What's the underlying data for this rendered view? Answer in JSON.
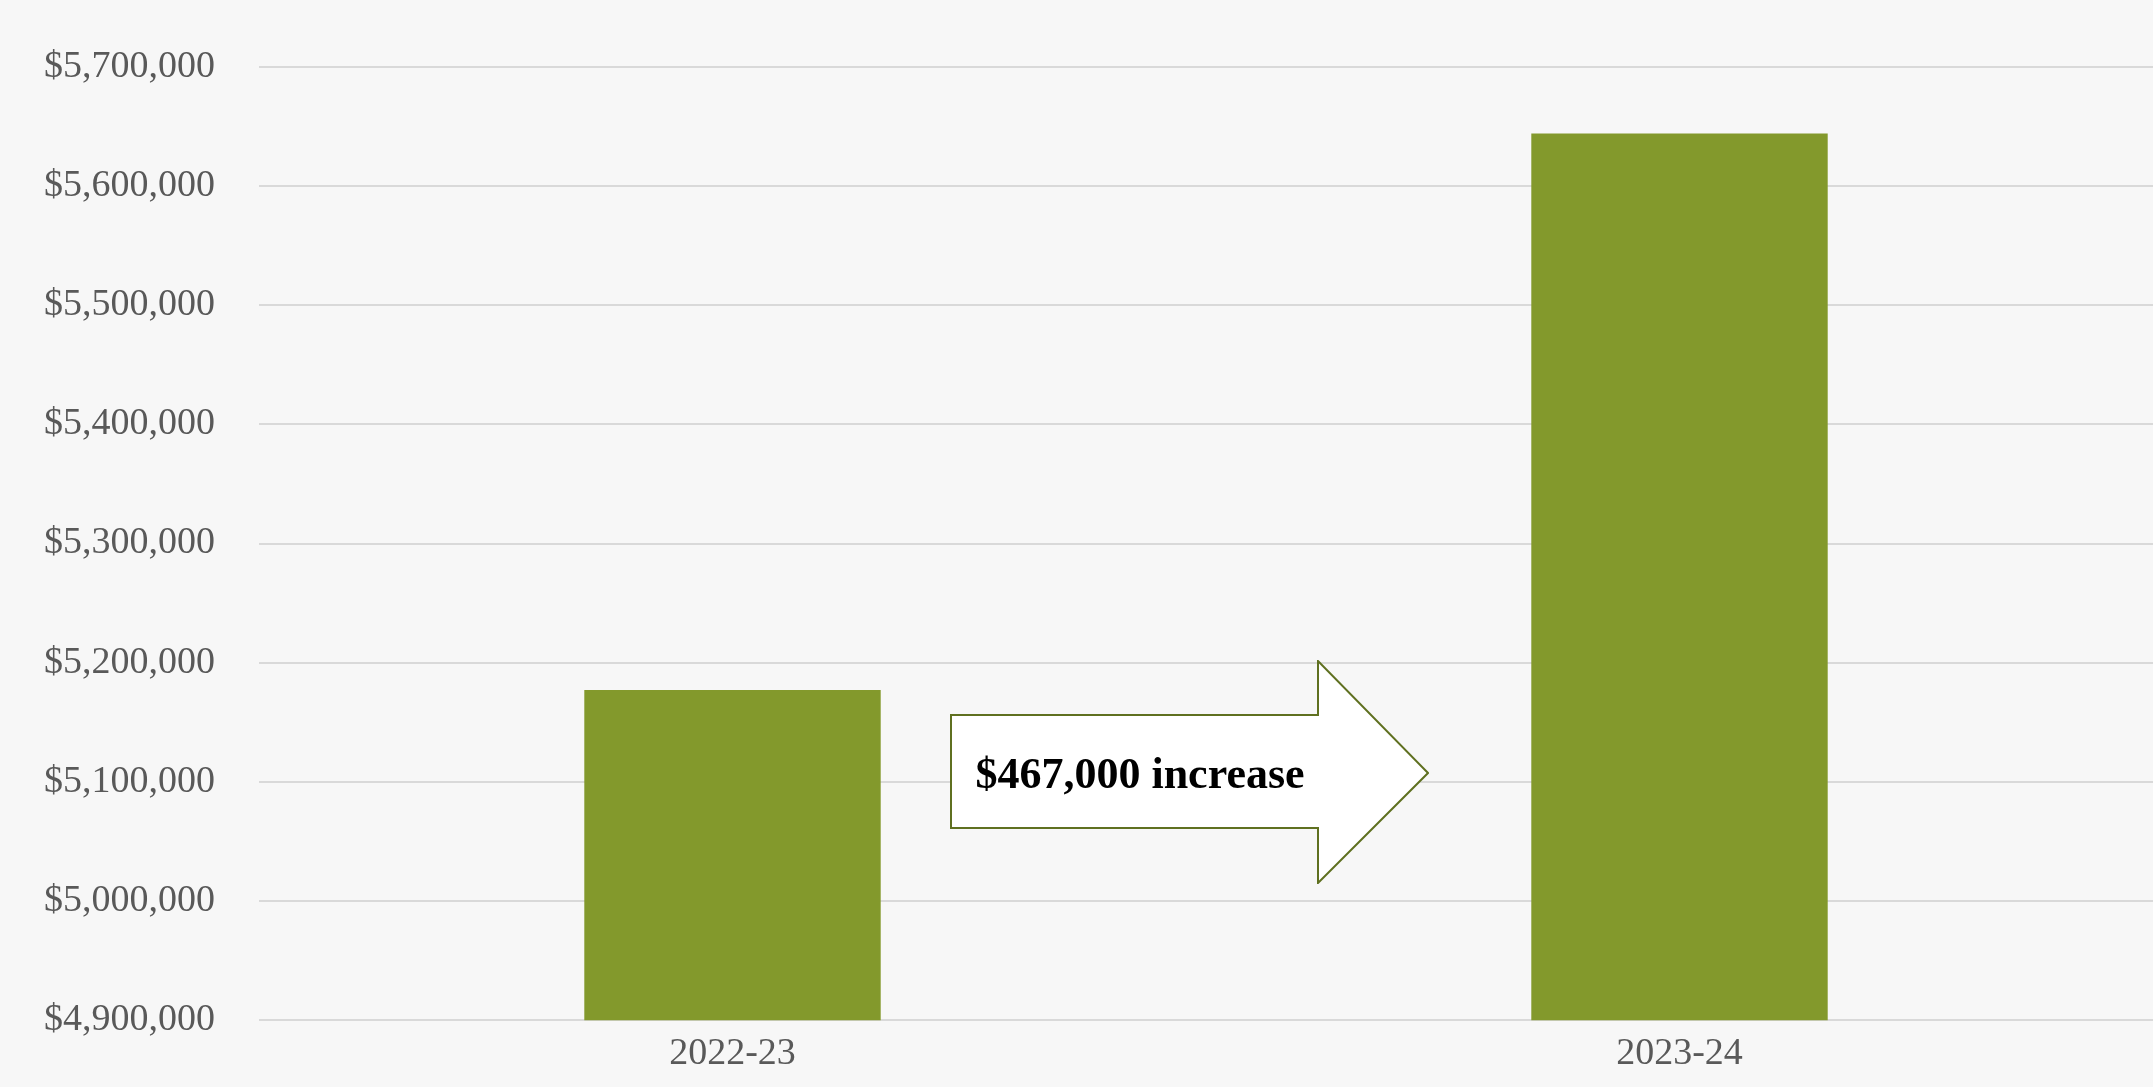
{
  "chart_data": {
    "type": "bar",
    "categories": [
      "2022-23",
      "2023-24"
    ],
    "values": [
      5177000,
      5644000
    ],
    "color": "#83992c",
    "ylim": [
      4900000,
      5700000
    ],
    "yticks": [
      {
        "value": 4900000,
        "label": "$4,900,000"
      },
      {
        "value": 5000000,
        "label": "$5,000,000"
      },
      {
        "value": 5100000,
        "label": "$5,100,000"
      },
      {
        "value": 5200000,
        "label": "$5,200,000"
      },
      {
        "value": 5300000,
        "label": "$5,300,000"
      },
      {
        "value": 5400000,
        "label": "$5,400,000"
      },
      {
        "value": 5500000,
        "label": "$5,500,000"
      },
      {
        "value": 5600000,
        "label": "$5,600,000"
      },
      {
        "value": 5700000,
        "label": "$5,700,000"
      }
    ],
    "grid": "y",
    "legend": false,
    "annotations": [
      "$467,000 increase"
    ]
  }
}
